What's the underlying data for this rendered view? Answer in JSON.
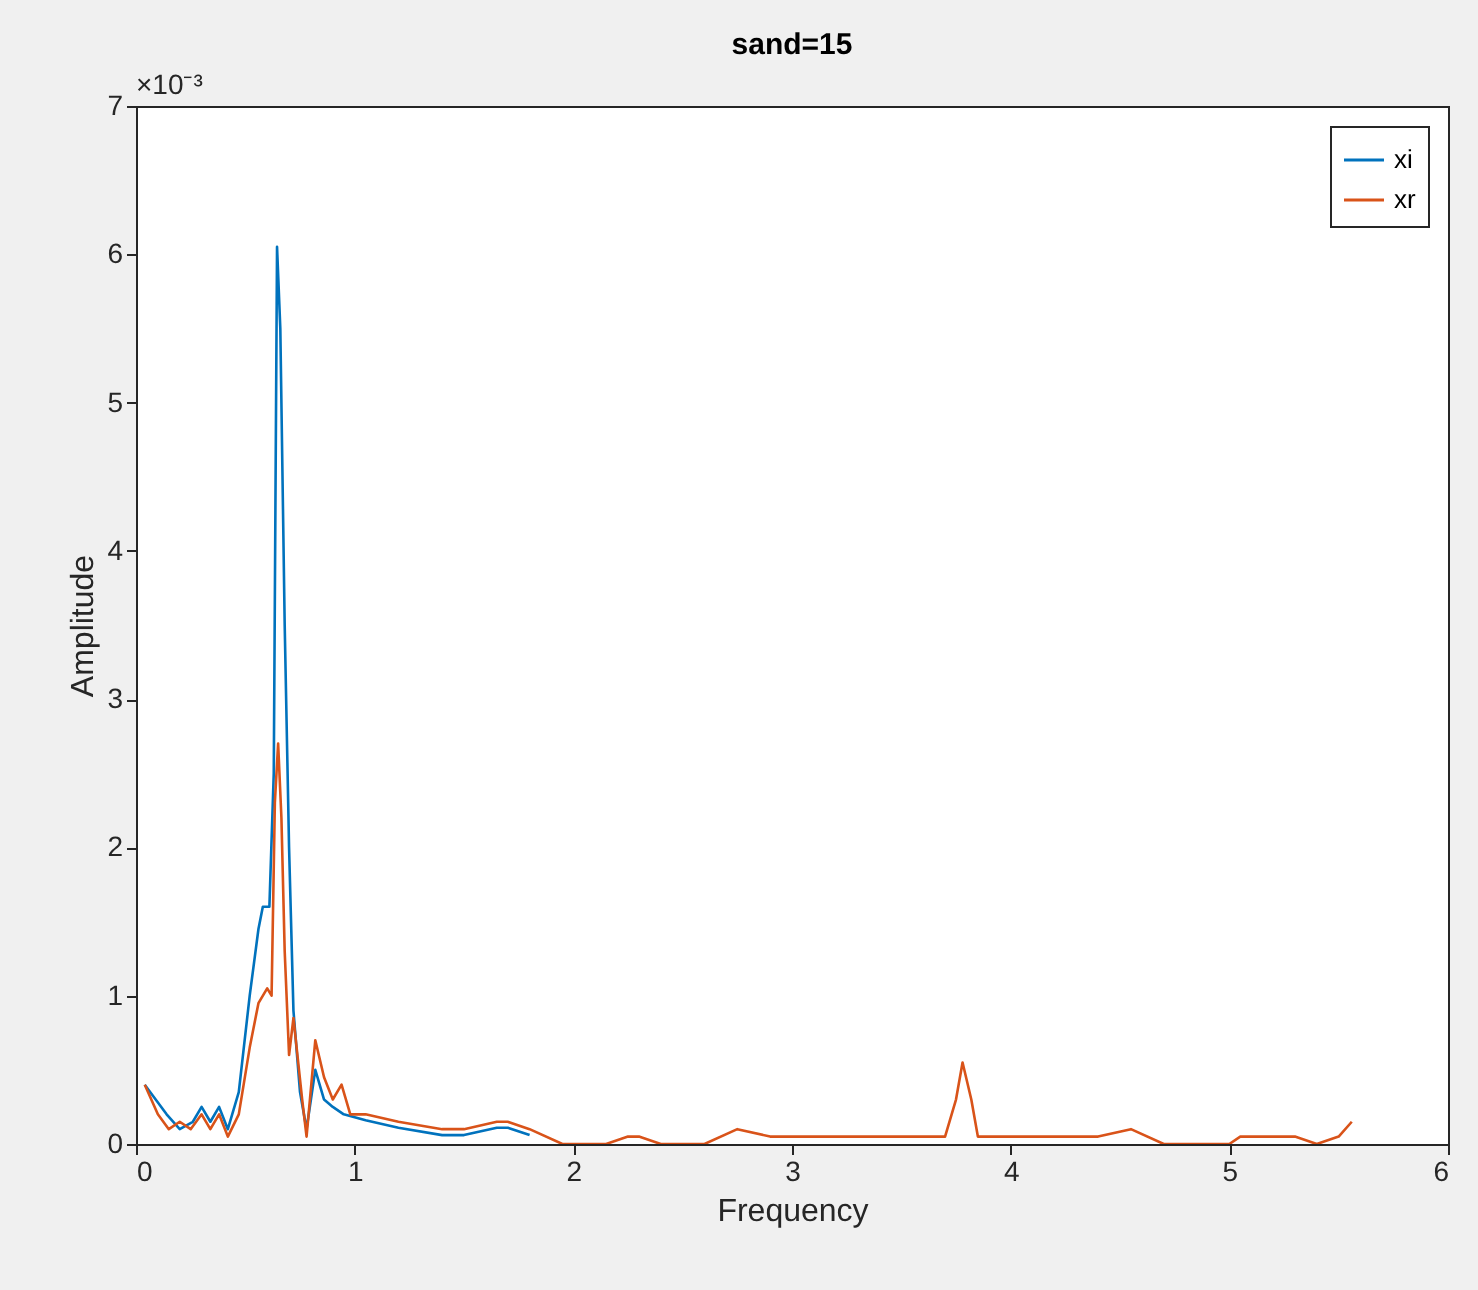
{
  "chart_data": {
    "type": "line",
    "title": "sand=15",
    "xlabel": "Frequency",
    "ylabel": "Amplitude",
    "annotations": [
      "×10⁻³"
    ],
    "xlim": [
      0,
      6
    ],
    "xticks": [
      0,
      1,
      2,
      3,
      4,
      5,
      6
    ],
    "ylim": [
      0,
      7
    ],
    "yticks": [
      0,
      1,
      2,
      3,
      4,
      5,
      6,
      7
    ],
    "grid": false,
    "legend": "top right",
    "series": [
      {
        "name": "xi",
        "color": "#0072bd",
        "x": [
          0.04,
          0.09,
          0.14,
          0.2,
          0.26,
          0.3,
          0.34,
          0.38,
          0.42,
          0.47,
          0.52,
          0.56,
          0.58,
          0.61,
          0.63,
          0.645,
          0.66,
          0.68,
          0.7,
          0.72,
          0.75,
          0.78,
          0.82,
          0.86,
          0.9,
          0.95,
          1.05,
          1.2,
          1.4,
          1.5,
          1.65,
          1.7,
          1.8
        ],
        "values": [
          0.4,
          0.3,
          0.2,
          0.1,
          0.15,
          0.25,
          0.15,
          0.25,
          0.1,
          0.35,
          1.0,
          1.45,
          1.6,
          1.6,
          2.5,
          6.05,
          5.5,
          3.5,
          2.0,
          0.9,
          0.35,
          0.1,
          0.5,
          0.3,
          0.25,
          0.2,
          0.16,
          0.11,
          0.06,
          0.06,
          0.11,
          0.11,
          0.06
        ]
      },
      {
        "name": "xr",
        "color": "#d95319",
        "x": [
          0.04,
          0.1,
          0.15,
          0.2,
          0.25,
          0.3,
          0.34,
          0.38,
          0.42,
          0.47,
          0.52,
          0.56,
          0.6,
          0.62,
          0.635,
          0.65,
          0.665,
          0.68,
          0.7,
          0.72,
          0.76,
          0.78,
          0.82,
          0.86,
          0.9,
          0.94,
          0.98,
          1.05,
          1.2,
          1.4,
          1.5,
          1.65,
          1.7,
          1.8,
          1.95,
          2.15,
          2.25,
          2.3,
          2.4,
          2.6,
          2.75,
          2.9,
          3.0,
          3.3,
          3.5,
          3.7,
          3.75,
          3.78,
          3.82,
          3.85,
          4.0,
          4.2,
          4.4,
          4.55,
          4.7,
          5.0,
          5.05,
          5.3,
          5.4,
          5.5,
          5.56
        ],
        "values": [
          0.4,
          0.2,
          0.1,
          0.15,
          0.1,
          0.2,
          0.1,
          0.2,
          0.05,
          0.2,
          0.65,
          0.95,
          1.05,
          1.0,
          2.3,
          2.7,
          2.2,
          1.3,
          0.6,
          0.85,
          0.3,
          0.05,
          0.7,
          0.45,
          0.3,
          0.4,
          0.2,
          0.2,
          0.15,
          0.1,
          0.1,
          0.15,
          0.15,
          0.1,
          0.0,
          0.0,
          0.05,
          0.05,
          0.0,
          0.0,
          0.1,
          0.05,
          0.05,
          0.05,
          0.05,
          0.05,
          0.3,
          0.55,
          0.3,
          0.05,
          0.05,
          0.05,
          0.05,
          0.1,
          0.0,
          0.0,
          0.05,
          0.05,
          0.0,
          0.05,
          0.15
        ]
      }
    ]
  }
}
